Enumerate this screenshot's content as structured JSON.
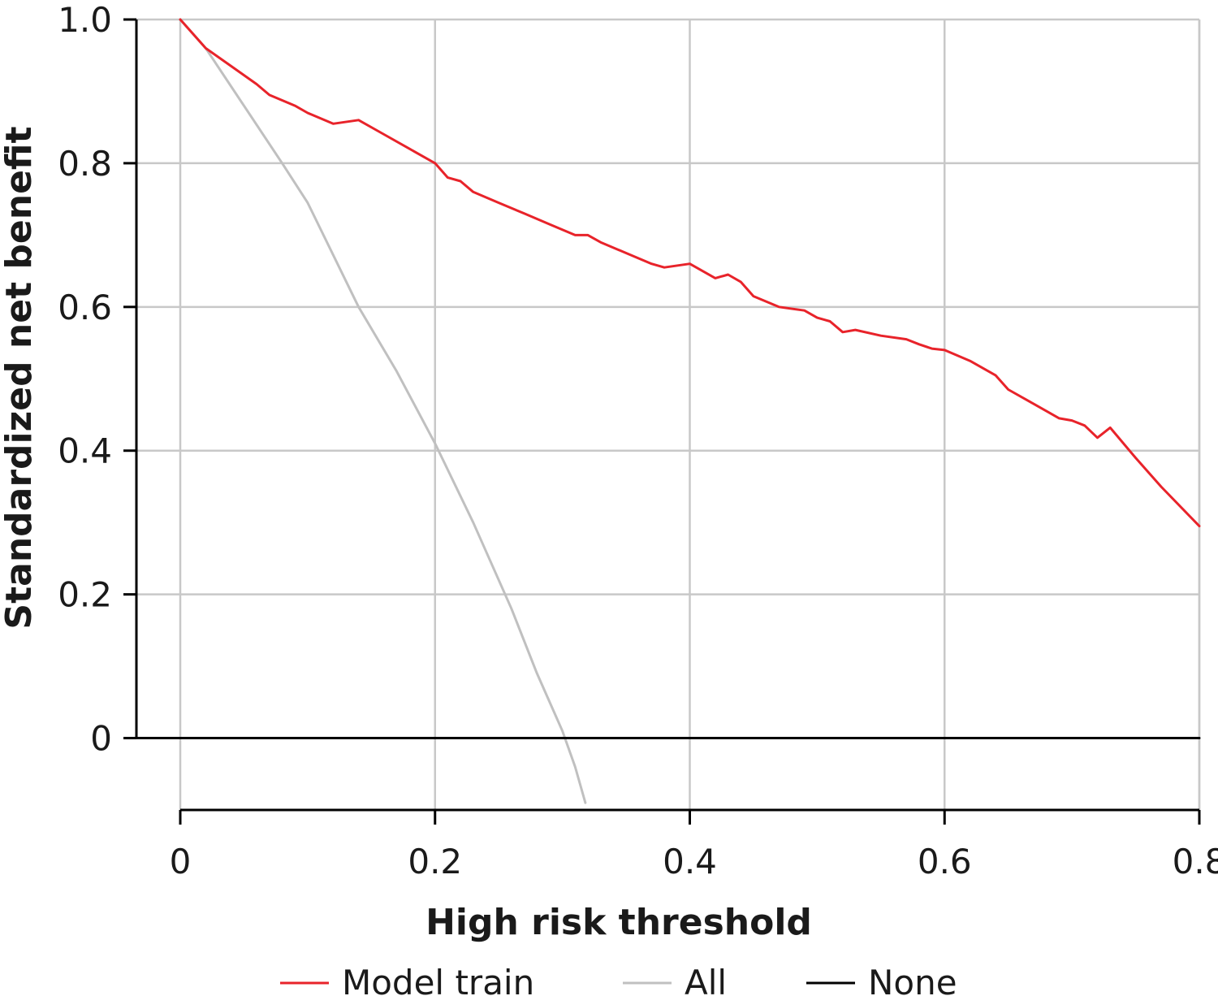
{
  "chart_data": {
    "type": "line",
    "title": "",
    "xlabel": "High risk threshold",
    "ylabel": "Standardized net benefit",
    "xlim": [
      0,
      0.8
    ],
    "ylim": [
      -0.1,
      1.0
    ],
    "x_ticks": [
      0,
      0.2,
      0.4,
      0.6,
      0.8
    ],
    "x_tick_labels": [
      "0",
      "0.2",
      "0.4",
      "0.6",
      "0.8"
    ],
    "y_ticks": [
      0,
      0.2,
      0.4,
      0.6,
      0.8,
      1.0
    ],
    "y_tick_labels": [
      "0",
      "0.2",
      "0.4",
      "0.6",
      "0.8",
      "1.0"
    ],
    "grid": true,
    "legend_position": "bottom",
    "series": [
      {
        "name": "Model train",
        "color": "#e8232a",
        "x": [
          0,
          0.02,
          0.04,
          0.06,
          0.07,
          0.09,
          0.1,
          0.12,
          0.14,
          0.16,
          0.18,
          0.2,
          0.21,
          0.22,
          0.23,
          0.25,
          0.27,
          0.29,
          0.31,
          0.32,
          0.33,
          0.35,
          0.37,
          0.38,
          0.4,
          0.41,
          0.42,
          0.43,
          0.44,
          0.45,
          0.47,
          0.49,
          0.5,
          0.51,
          0.52,
          0.53,
          0.55,
          0.57,
          0.58,
          0.59,
          0.6,
          0.62,
          0.64,
          0.65,
          0.67,
          0.69,
          0.7,
          0.71,
          0.72,
          0.73,
          0.75,
          0.77,
          0.8
        ],
        "values": [
          1.0,
          0.96,
          0.935,
          0.91,
          0.895,
          0.88,
          0.87,
          0.855,
          0.86,
          0.84,
          0.82,
          0.8,
          0.78,
          0.775,
          0.76,
          0.745,
          0.73,
          0.715,
          0.7,
          0.7,
          0.69,
          0.675,
          0.66,
          0.655,
          0.66,
          0.65,
          0.64,
          0.645,
          0.635,
          0.615,
          0.6,
          0.595,
          0.585,
          0.58,
          0.565,
          0.568,
          0.56,
          0.555,
          0.548,
          0.542,
          0.54,
          0.525,
          0.505,
          0.485,
          0.465,
          0.445,
          0.442,
          0.435,
          0.418,
          0.432,
          0.39,
          0.35,
          0.295
        ]
      },
      {
        "name": "All",
        "color": "#c0c0c0",
        "x": [
          0,
          0.02,
          0.05,
          0.08,
          0.1,
          0.14,
          0.17,
          0.2,
          0.23,
          0.26,
          0.28,
          0.3,
          0.31,
          0.318
        ],
        "values": [
          1.0,
          0.96,
          0.88,
          0.8,
          0.745,
          0.6,
          0.51,
          0.41,
          0.3,
          0.18,
          0.09,
          0.01,
          -0.04,
          -0.09
        ]
      },
      {
        "name": "None",
        "color": "#000000",
        "x": [
          0,
          0.8
        ],
        "values": [
          0,
          0
        ]
      }
    ]
  }
}
